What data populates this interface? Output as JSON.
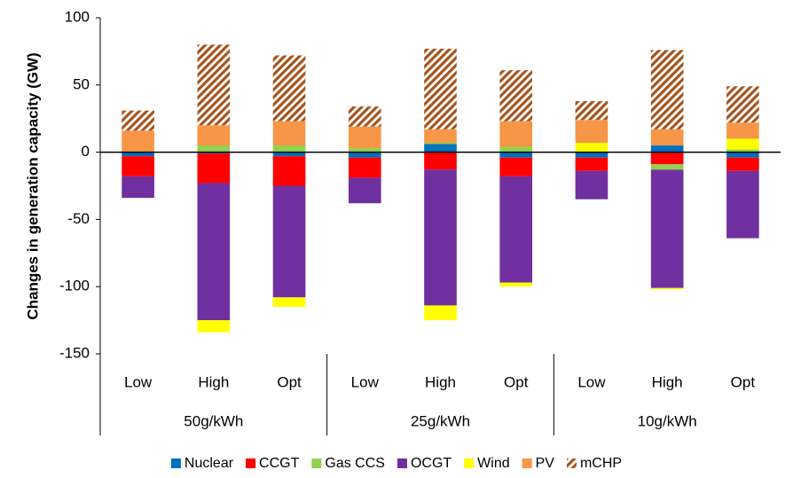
{
  "chart_data": {
    "type": "bar",
    "stacked": true,
    "ylabel": "Changes in generation capacity (GW)",
    "categories": [
      "Low",
      "High",
      "Opt",
      "Low",
      "High",
      "Opt",
      "Low",
      "High",
      "Opt"
    ],
    "groups": [
      "50g/kWh",
      "25g/kWh",
      "10g/kWh"
    ],
    "ylim": [
      -150,
      100
    ],
    "yticks": [
      -150,
      -100,
      -50,
      0,
      50,
      100
    ],
    "series": [
      {
        "name": "Nuclear",
        "color": "#0070c0",
        "values": [
          -3,
          -1,
          -3,
          -4,
          6,
          -4,
          -4,
          5,
          -4
        ]
      },
      {
        "name": "CCGT",
        "color": "#ff0000",
        "values": [
          -15,
          -22,
          -22,
          -15,
          -13,
          -14,
          -10,
          -9,
          -10
        ]
      },
      {
        "name": "Gas CCS",
        "color": "#92d050",
        "values": [
          0,
          5,
          5,
          3,
          1,
          4,
          0,
          -4,
          2
        ]
      },
      {
        "name": "OCGT",
        "color": "#7030a0",
        "values": [
          -16,
          -102,
          -83,
          -19,
          -101,
          -79,
          -21,
          -88,
          -50
        ]
      },
      {
        "name": "Wind",
        "color": "#ffff00",
        "values": [
          0,
          -9,
          -7,
          0,
          -11,
          -3,
          7,
          -1,
          8
        ]
      },
      {
        "name": "PV",
        "color": "#f79646",
        "values": [
          16,
          15,
          18,
          16,
          10,
          19,
          17,
          12,
          12
        ]
      },
      {
        "name": "mCHP",
        "color": "#a5541e",
        "pattern": "hatch",
        "values": [
          15,
          60,
          49,
          15,
          60,
          38,
          14,
          59,
          27
        ]
      }
    ]
  }
}
